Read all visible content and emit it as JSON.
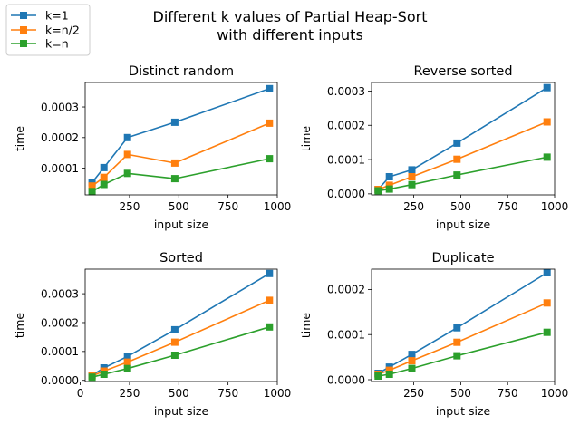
{
  "figure": {
    "title_line1": "Different k values of Partial Heap-Sort",
    "title_line2": "with different inputs"
  },
  "legend": [
    {
      "label": "k=1",
      "color": "#1f77b4"
    },
    {
      "label": "k=n/2",
      "color": "#ff7f0e"
    },
    {
      "label": "k=n",
      "color": "#2ca02c"
    }
  ],
  "chart_data": [
    {
      "type": "line",
      "title": "Distinct random",
      "xlabel": "input size",
      "ylabel": "time",
      "x": [
        60,
        120,
        240,
        480,
        960
      ],
      "xlim": [
        25,
        1000
      ],
      "xticks": [
        250,
        500,
        750,
        1000
      ],
      "ylim": [
        1.3e-05,
        0.00038
      ],
      "yticks": [
        0.0001,
        0.0002,
        0.0003
      ],
      "ytick_labels": [
        "0.0001",
        "0.0002",
        "0.0003"
      ],
      "series": [
        {
          "name": "k=1",
          "color": "#1f77b4",
          "values": [
            5.3e-05,
            0.000102,
            0.0002,
            0.00025,
            0.00036
          ]
        },
        {
          "name": "k=n/2",
          "color": "#ff7f0e",
          "values": [
            4.2e-05,
            7e-05,
            0.000145,
            0.000117,
            0.000247
          ]
        },
        {
          "name": "k=n",
          "color": "#2ca02c",
          "values": [
            2.4e-05,
            4.7e-05,
            8.3e-05,
            6.6e-05,
            0.000131
          ]
        }
      ]
    },
    {
      "type": "line",
      "title": "Reverse sorted",
      "xlabel": "input size",
      "ylabel": "time",
      "x": [
        60,
        120,
        240,
        480,
        960
      ],
      "xlim": [
        25,
        1000
      ],
      "xticks": [
        250,
        500,
        750,
        1000
      ],
      "ylim": [
        -3e-06,
        0.000325
      ],
      "yticks": [
        0.0,
        0.0001,
        0.0002,
        0.0003
      ],
      "ytick_labels": [
        "0.0000",
        "0.0001",
        "0.0002",
        "0.0003"
      ],
      "series": [
        {
          "name": "k=1",
          "color": "#1f77b4",
          "values": [
            1.3e-05,
            5e-05,
            7e-05,
            0.000148,
            0.00031
          ]
        },
        {
          "name": "k=n/2",
          "color": "#ff7f0e",
          "values": [
            1.3e-05,
            2.5e-05,
            5e-05,
            0.000101,
            0.00021
          ]
        },
        {
          "name": "k=n",
          "color": "#2ca02c",
          "values": [
            9e-06,
            1.4e-05,
            2.7e-05,
            5.5e-05,
            0.000107
          ]
        }
      ]
    },
    {
      "type": "line",
      "title": "Sorted",
      "xlabel": "input size",
      "ylabel": "time",
      "x": [
        60,
        120,
        240,
        480,
        960
      ],
      "xlim": [
        25,
        1000
      ],
      "xticks": [
        0,
        250,
        500,
        750,
        1000
      ],
      "ylim": [
        -4e-06,
        0.000385
      ],
      "yticks": [
        0.0,
        0.0001,
        0.0002,
        0.0003
      ],
      "ytick_labels": [
        "0.0000",
        "0.0001",
        "0.0002",
        "0.0003"
      ],
      "series": [
        {
          "name": "k=1",
          "color": "#1f77b4",
          "values": [
            1.8e-05,
            4.3e-05,
            8.3e-05,
            0.000175,
            0.00037
          ]
        },
        {
          "name": "k=n/2",
          "color": "#ff7f0e",
          "values": [
            1.5e-05,
            3.2e-05,
            6.3e-05,
            0.000132,
            0.000277
          ]
        },
        {
          "name": "k=n",
          "color": "#2ca02c",
          "values": [
            1.1e-05,
            2.1e-05,
            4.1e-05,
            8.7e-05,
            0.000185
          ]
        }
      ]
    },
    {
      "type": "line",
      "title": "Duplicate",
      "xlabel": "input size",
      "ylabel": "time",
      "x": [
        60,
        120,
        240,
        480,
        960
      ],
      "xlim": [
        25,
        1000
      ],
      "xticks": [
        250,
        500,
        750,
        1000
      ],
      "ylim": [
        -4e-06,
        0.000245
      ],
      "yticks": [
        0.0,
        0.0001,
        0.0002
      ],
      "ytick_labels": [
        "0.0000",
        "0.0001",
        "0.0002"
      ],
      "series": [
        {
          "name": "k=1",
          "color": "#1f77b4",
          "values": [
            1.4e-05,
            2.8e-05,
            5.6e-05,
            0.000115,
            0.000237
          ]
        },
        {
          "name": "k=n/2",
          "color": "#ff7f0e",
          "values": [
            1.2e-05,
            2.1e-05,
            4.2e-05,
            8.3e-05,
            0.00017
          ]
        },
        {
          "name": "k=n",
          "color": "#2ca02c",
          "values": [
            8e-06,
            1.2e-05,
            2.5e-05,
            5.3e-05,
            0.000105
          ]
        }
      ]
    }
  ]
}
